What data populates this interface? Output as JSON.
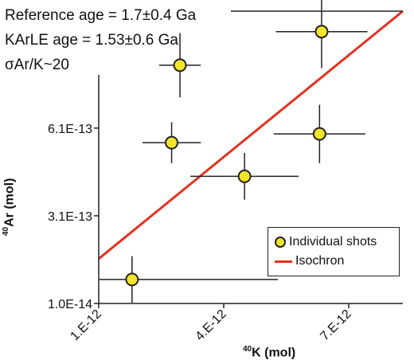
{
  "chart_data": {
    "type": "scatter",
    "annotations": [
      "Reference age = 1.7±0.4 Ga",
      "KArLE age = 1.53±0.6 Ga",
      "σAr/K~20"
    ],
    "xlabel_sup": "40",
    "xlabel_main": "K (mol)",
    "ylabel_sup": "40",
    "ylabel_main": "Ar (mol)",
    "xlim": [
      1e-12,
      8.3e-12
    ],
    "ylim": [
      1e-14,
      1.01e-12
    ],
    "x_ticks": [
      1e-12,
      4e-12,
      7e-12
    ],
    "x_tick_labels": [
      "1.E-12",
      "4.E-12",
      "7.E-12"
    ],
    "y_ticks": [
      1e-14,
      3.1e-13,
      6.1e-13
    ],
    "y_tick_labels": [
      "1.0E-14",
      "3.1E-13",
      "6.1E-13"
    ],
    "series": [
      {
        "name": "Individual shots",
        "points": [
          {
            "x": 1.8e-12,
            "y": 9.2e-14,
            "xerr_low": 8e-13,
            "xerr_high": 3.5e-12,
            "yerr": 8e-14
          },
          {
            "x": 2.75e-12,
            "y": 5.6e-13,
            "xerr_low": 7e-13,
            "xerr_high": 7e-13,
            "yerr": 7e-14
          },
          {
            "x": 2.95e-12,
            "y": 8.25e-13,
            "xerr_low": 5e-13,
            "xerr_high": 5e-13,
            "yerr": 1.1e-13
          },
          {
            "x": 4.5e-12,
            "y": 4.45e-13,
            "xerr_low": 1.3e-12,
            "xerr_high": 1.3e-12,
            "yerr": 8e-14
          },
          {
            "x": 6.3e-12,
            "y": 5.9e-13,
            "xerr_low": 1.1e-12,
            "xerr_high": 1.1e-12,
            "yerr": 1e-13
          },
          {
            "x": 6.35e-12,
            "y": 9.4e-13,
            "xerr_low": 1.1e-12,
            "xerr_high": 1.1e-12,
            "yerr": 1.25e-13
          }
        ]
      },
      {
        "name": "Isochron",
        "line": [
          [
            1e-12,
            1.63e-13
          ],
          [
            8.3e-12,
            1.01e-12
          ]
        ]
      }
    ],
    "legend": "bottom-right",
    "grid": false
  },
  "colors": {
    "marker_fill": "#f2e52a",
    "marker_edge": "#222222",
    "isochron": "#e3321f",
    "axis": "#222222",
    "errorbar": "#222222"
  }
}
